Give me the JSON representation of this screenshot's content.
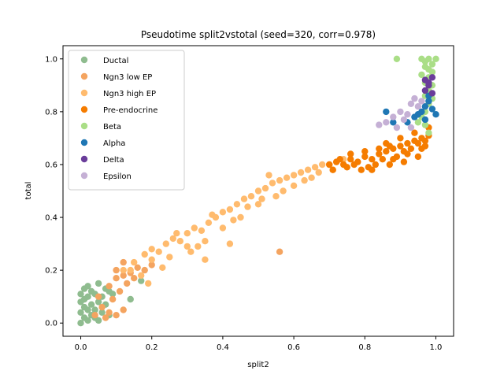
{
  "chart_data": {
    "type": "scatter",
    "title": "Pseudotime split2vstotal (seed=320, corr=0.978)",
    "xlabel": "split2",
    "ylabel": "total",
    "xlim": [
      -0.05,
      1.05
    ],
    "ylim": [
      -0.05,
      1.05
    ],
    "xticks": [
      "0.0",
      "0.2",
      "0.4",
      "0.6",
      "0.8",
      "1.0"
    ],
    "yticks": [
      "0.0",
      "0.2",
      "0.4",
      "0.6",
      "0.8",
      "1.0"
    ],
    "grid": false,
    "legend_position": "upper-left",
    "series": [
      {
        "name": "Ductal",
        "color": "#8fbc8f",
        "points": [
          [
            0.0,
            0.0
          ],
          [
            0.01,
            0.02
          ],
          [
            0.0,
            0.04
          ],
          [
            0.02,
            0.01
          ],
          [
            0.01,
            0.06
          ],
          [
            0.03,
            0.03
          ],
          [
            0.0,
            0.08
          ],
          [
            0.02,
            0.1
          ],
          [
            0.04,
            0.05
          ],
          [
            0.05,
            0.08
          ],
          [
            0.03,
            0.12
          ],
          [
            0.06,
            0.1
          ],
          [
            0.07,
            0.13
          ],
          [
            0.05,
            0.15
          ],
          [
            0.08,
            0.12
          ],
          [
            0.01,
            0.09
          ],
          [
            0.02,
            0.05
          ],
          [
            0.04,
            0.02
          ],
          [
            0.06,
            0.04
          ],
          [
            0.03,
            0.07
          ],
          [
            0.0,
            0.11
          ],
          [
            0.01,
            0.13
          ],
          [
            0.07,
            0.07
          ],
          [
            0.09,
            0.11
          ],
          [
            0.14,
            0.09
          ],
          [
            0.17,
            0.16
          ],
          [
            0.05,
            0.01
          ],
          [
            0.08,
            0.03
          ],
          [
            0.02,
            0.14
          ],
          [
            0.04,
            0.11
          ]
        ]
      },
      {
        "name": "Ngn3 low EP",
        "color": "#f4a460",
        "points": [
          [
            0.05,
            0.1
          ],
          [
            0.08,
            0.14
          ],
          [
            0.1,
            0.17
          ],
          [
            0.12,
            0.18
          ],
          [
            0.14,
            0.19
          ],
          [
            0.15,
            0.17
          ],
          [
            0.16,
            0.21
          ],
          [
            0.13,
            0.15
          ],
          [
            0.11,
            0.12
          ],
          [
            0.09,
            0.09
          ],
          [
            0.06,
            0.06
          ],
          [
            0.08,
            0.04
          ],
          [
            0.1,
            0.03
          ],
          [
            0.12,
            0.05
          ],
          [
            0.07,
            0.02
          ],
          [
            0.18,
            0.2
          ],
          [
            0.2,
            0.22
          ],
          [
            0.1,
            0.2
          ],
          [
            0.56,
            0.27
          ],
          [
            0.12,
            0.23
          ],
          [
            0.04,
            0.03
          ]
        ]
      },
      {
        "name": "Ngn3 high EP",
        "color": "#ffbb6e",
        "points": [
          [
            0.12,
            0.2
          ],
          [
            0.15,
            0.23
          ],
          [
            0.18,
            0.26
          ],
          [
            0.2,
            0.28
          ],
          [
            0.22,
            0.27
          ],
          [
            0.24,
            0.3
          ],
          [
            0.26,
            0.32
          ],
          [
            0.28,
            0.31
          ],
          [
            0.3,
            0.34
          ],
          [
            0.32,
            0.36
          ],
          [
            0.34,
            0.35
          ],
          [
            0.36,
            0.38
          ],
          [
            0.38,
            0.4
          ],
          [
            0.4,
            0.42
          ],
          [
            0.42,
            0.43
          ],
          [
            0.44,
            0.45
          ],
          [
            0.46,
            0.47
          ],
          [
            0.48,
            0.48
          ],
          [
            0.5,
            0.5
          ],
          [
            0.52,
            0.51
          ],
          [
            0.54,
            0.53
          ],
          [
            0.56,
            0.54
          ],
          [
            0.58,
            0.55
          ],
          [
            0.6,
            0.56
          ],
          [
            0.62,
            0.57
          ],
          [
            0.64,
            0.58
          ],
          [
            0.66,
            0.59
          ],
          [
            0.68,
            0.6
          ],
          [
            0.7,
            0.6
          ],
          [
            0.72,
            0.61
          ],
          [
            0.74,
            0.62
          ],
          [
            0.25,
            0.25
          ],
          [
            0.3,
            0.29
          ],
          [
            0.35,
            0.31
          ],
          [
            0.4,
            0.36
          ],
          [
            0.45,
            0.4
          ],
          [
            0.5,
            0.45
          ],
          [
            0.55,
            0.48
          ],
          [
            0.6,
            0.52
          ],
          [
            0.65,
            0.55
          ],
          [
            0.2,
            0.24
          ],
          [
            0.17,
            0.18
          ],
          [
            0.23,
            0.21
          ],
          [
            0.27,
            0.34
          ],
          [
            0.33,
            0.29
          ],
          [
            0.37,
            0.41
          ],
          [
            0.43,
            0.39
          ],
          [
            0.47,
            0.44
          ],
          [
            0.51,
            0.47
          ],
          [
            0.53,
            0.56
          ],
          [
            0.57,
            0.5
          ],
          [
            0.63,
            0.54
          ],
          [
            0.67,
            0.57
          ],
          [
            0.71,
            0.58
          ],
          [
            0.14,
            0.2
          ],
          [
            0.19,
            0.15
          ],
          [
            0.35,
            0.24
          ],
          [
            0.42,
            0.3
          ],
          [
            0.31,
            0.27
          ]
        ]
      },
      {
        "name": "Pre-endocrine",
        "color": "#f57c00",
        "points": [
          [
            0.7,
            0.6
          ],
          [
            0.72,
            0.61
          ],
          [
            0.74,
            0.6
          ],
          [
            0.76,
            0.62
          ],
          [
            0.78,
            0.61
          ],
          [
            0.8,
            0.63
          ],
          [
            0.82,
            0.62
          ],
          [
            0.84,
            0.64
          ],
          [
            0.86,
            0.65
          ],
          [
            0.88,
            0.66
          ],
          [
            0.9,
            0.67
          ],
          [
            0.92,
            0.68
          ],
          [
            0.94,
            0.69
          ],
          [
            0.96,
            0.7
          ],
          [
            0.98,
            0.71
          ],
          [
            0.85,
            0.62
          ],
          [
            0.87,
            0.6
          ],
          [
            0.89,
            0.63
          ],
          [
            0.91,
            0.65
          ],
          [
            0.93,
            0.66
          ],
          [
            0.95,
            0.68
          ],
          [
            0.97,
            0.69
          ],
          [
            0.83,
            0.6
          ],
          [
            0.81,
            0.59
          ],
          [
            0.79,
            0.58
          ],
          [
            0.77,
            0.6
          ],
          [
            0.75,
            0.59
          ],
          [
            0.86,
            0.68
          ],
          [
            0.9,
            0.7
          ],
          [
            0.94,
            0.72
          ],
          [
            0.96,
            0.66
          ],
          [
            0.88,
            0.62
          ],
          [
            0.92,
            0.64
          ],
          [
            0.84,
            0.66
          ],
          [
            0.8,
            0.65
          ],
          [
            0.76,
            0.64
          ],
          [
            0.98,
            0.74
          ],
          [
            0.97,
            0.67
          ],
          [
            0.91,
            0.61
          ],
          [
            0.87,
            0.67
          ],
          [
            0.73,
            0.62
          ],
          [
            0.71,
            0.58
          ],
          [
            0.82,
            0.58
          ],
          [
            0.95,
            0.63
          ]
        ]
      },
      {
        "name": "Beta",
        "color": "#aade87",
        "points": [
          [
            0.96,
            1.0
          ],
          [
            0.97,
            0.99
          ],
          [
            0.98,
            1.0
          ],
          [
            0.99,
            0.98
          ],
          [
            1.0,
            1.0
          ],
          [
            0.97,
            0.97
          ],
          [
            0.98,
            0.96
          ],
          [
            0.99,
            0.95
          ],
          [
            0.96,
            0.94
          ],
          [
            0.98,
            0.93
          ],
          [
            0.97,
            0.91
          ],
          [
            0.99,
            0.9
          ],
          [
            0.98,
            0.88
          ],
          [
            0.97,
            0.86
          ],
          [
            0.99,
            0.85
          ],
          [
            0.98,
            0.83
          ],
          [
            0.97,
            0.8
          ],
          [
            0.96,
            0.78
          ],
          [
            0.95,
            0.76
          ],
          [
            0.89,
            1.0
          ],
          [
            0.97,
            0.75
          ],
          [
            0.98,
            0.72
          ]
        ]
      },
      {
        "name": "Alpha",
        "color": "#1f77b4",
        "points": [
          [
            0.92,
            0.76
          ],
          [
            0.94,
            0.78
          ],
          [
            0.96,
            0.8
          ],
          [
            0.97,
            0.82
          ],
          [
            0.98,
            0.84
          ],
          [
            0.99,
            0.81
          ],
          [
            1.0,
            0.79
          ],
          [
            0.97,
            0.77
          ],
          [
            0.95,
            0.79
          ],
          [
            0.98,
            0.86
          ],
          [
            0.86,
            0.8
          ],
          [
            0.88,
            0.76
          ]
        ]
      },
      {
        "name": "Delta",
        "color": "#6a3d9a",
        "points": [
          [
            0.97,
            0.92
          ],
          [
            0.98,
            0.91
          ],
          [
            0.99,
            0.93
          ],
          [
            0.98,
            0.9
          ],
          [
            0.97,
            0.88
          ],
          [
            0.99,
            0.87
          ]
        ]
      },
      {
        "name": "Epsilon",
        "color": "#c5b0d5",
        "points": [
          [
            0.84,
            0.75
          ],
          [
            0.86,
            0.76
          ],
          [
            0.88,
            0.78
          ],
          [
            0.9,
            0.8
          ],
          [
            0.92,
            0.79
          ],
          [
            0.93,
            0.83
          ],
          [
            0.95,
            0.82
          ],
          [
            0.94,
            0.85
          ],
          [
            0.96,
            0.84
          ],
          [
            0.91,
            0.77
          ],
          [
            0.89,
            0.74
          ],
          [
            0.93,
            0.74
          ]
        ]
      }
    ]
  }
}
